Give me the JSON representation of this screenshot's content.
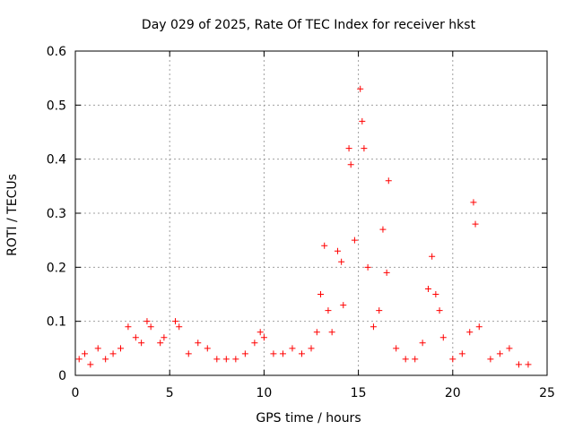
{
  "chart_data": {
    "type": "scatter",
    "title": "Day 029 of 2025, Rate Of TEC Index for receiver hkst",
    "xlabel": "GPS time / hours",
    "ylabel": "ROTI / TECUs",
    "xlim": [
      0,
      25
    ],
    "ylim": [
      0,
      0.6
    ],
    "xticks": [
      0,
      5,
      10,
      15,
      20,
      25
    ],
    "xtick_labels": [
      "0",
      "5",
      "10",
      "15",
      "20",
      "25"
    ],
    "yticks": [
      0,
      0.1,
      0.2,
      0.3,
      0.4,
      0.5,
      0.6
    ],
    "ytick_labels": [
      "0",
      "0.1",
      "0.2",
      "0.3",
      "0.4",
      "0.5",
      "0.6"
    ],
    "grid": true,
    "marker": "plus",
    "color": "#ff0000",
    "series": [
      {
        "name": "ROTI",
        "points": [
          [
            0.2,
            0.03
          ],
          [
            0.5,
            0.04
          ],
          [
            0.8,
            0.02
          ],
          [
            1.2,
            0.05
          ],
          [
            1.6,
            0.03
          ],
          [
            2.0,
            0.04
          ],
          [
            2.4,
            0.05
          ],
          [
            2.8,
            0.09
          ],
          [
            3.2,
            0.07
          ],
          [
            3.5,
            0.06
          ],
          [
            3.8,
            0.1
          ],
          [
            4.0,
            0.09
          ],
          [
            4.5,
            0.06
          ],
          [
            4.7,
            0.07
          ],
          [
            5.3,
            0.1
          ],
          [
            5.5,
            0.09
          ],
          [
            6.0,
            0.04
          ],
          [
            6.5,
            0.06
          ],
          [
            7.0,
            0.05
          ],
          [
            7.5,
            0.03
          ],
          [
            8.0,
            0.03
          ],
          [
            8.5,
            0.03
          ],
          [
            9.0,
            0.04
          ],
          [
            9.5,
            0.06
          ],
          [
            9.8,
            0.08
          ],
          [
            10.0,
            0.07
          ],
          [
            10.5,
            0.04
          ],
          [
            11.0,
            0.04
          ],
          [
            11.5,
            0.05
          ],
          [
            12.0,
            0.04
          ],
          [
            12.5,
            0.05
          ],
          [
            12.8,
            0.08
          ],
          [
            13.0,
            0.15
          ],
          [
            13.2,
            0.24
          ],
          [
            13.4,
            0.12
          ],
          [
            13.6,
            0.08
          ],
          [
            13.9,
            0.23
          ],
          [
            14.1,
            0.21
          ],
          [
            14.2,
            0.13
          ],
          [
            14.5,
            0.42
          ],
          [
            14.6,
            0.39
          ],
          [
            14.8,
            0.25
          ],
          [
            15.1,
            0.53
          ],
          [
            15.2,
            0.47
          ],
          [
            15.3,
            0.42
          ],
          [
            15.5,
            0.2
          ],
          [
            15.8,
            0.09
          ],
          [
            16.1,
            0.12
          ],
          [
            16.3,
            0.27
          ],
          [
            16.5,
            0.19
          ],
          [
            16.6,
            0.36
          ],
          [
            17.0,
            0.05
          ],
          [
            17.5,
            0.03
          ],
          [
            18.0,
            0.03
          ],
          [
            18.4,
            0.06
          ],
          [
            18.7,
            0.16
          ],
          [
            18.9,
            0.22
          ],
          [
            19.1,
            0.15
          ],
          [
            19.3,
            0.12
          ],
          [
            19.5,
            0.07
          ],
          [
            20.0,
            0.03
          ],
          [
            20.5,
            0.04
          ],
          [
            20.9,
            0.08
          ],
          [
            21.1,
            0.32
          ],
          [
            21.2,
            0.28
          ],
          [
            21.4,
            0.09
          ],
          [
            22.0,
            0.03
          ],
          [
            22.5,
            0.04
          ],
          [
            23.0,
            0.05
          ],
          [
            23.5,
            0.02
          ],
          [
            24.0,
            0.02
          ]
        ]
      }
    ]
  }
}
